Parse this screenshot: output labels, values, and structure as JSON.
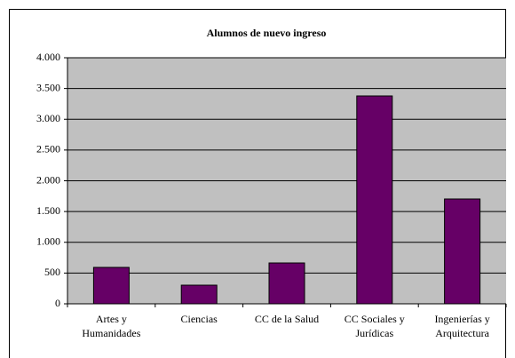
{
  "chart_data": {
    "type": "bar",
    "title": "Alumnos de nuevo ingreso",
    "categories": [
      "Artes y Humanidades",
      "Ciencias",
      "CC de la Salud",
      "CC Sociales y Jurídicas",
      "Ingenierías y Arquitectura"
    ],
    "values": [
      592,
      303,
      664,
      3379,
      1704
    ],
    "color": "#660066",
    "ylim": [
      0,
      4000
    ],
    "yticks": [
      0,
      {
        "value": 500,
        "label": "500"
      },
      {
        "value": 1000,
        "label": "1.000"
      },
      {
        "value": 1500,
        "label": "1.500"
      },
      {
        "value": 2000,
        "label": "2.000"
      },
      {
        "value": 2500,
        "label": "2.500"
      },
      {
        "value": 3000,
        "label": "3.000"
      },
      {
        "value": 3500,
        "label": "3.500"
      },
      {
        "value": 4000,
        "label": "4.000"
      }
    ],
    "grid": true
  }
}
